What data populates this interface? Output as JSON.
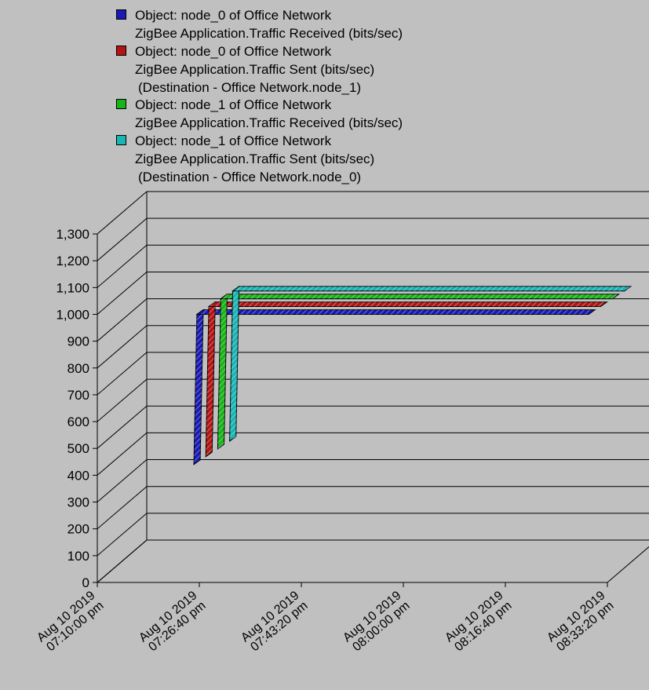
{
  "chart_data": {
    "type": "line",
    "view": "3d-ribbon",
    "ylim": [
      0,
      1300
    ],
    "yticks": [
      "0",
      "100",
      "200",
      "300",
      "400",
      "500",
      "600",
      "700",
      "800",
      "900",
      "1,000",
      "1,100",
      "1,200",
      "1,300"
    ],
    "xticks": [
      {
        "line1": "Aug 10 2019",
        "line2": "07:10:00 pm"
      },
      {
        "line1": "Aug 10 2019",
        "line2": "07:26:40 pm"
      },
      {
        "line1": "Aug 10 2019",
        "line2": "07:43:20 pm"
      },
      {
        "line1": "Aug 10 2019",
        "line2": "08:00:00 pm"
      },
      {
        "line1": "Aug 10 2019",
        "line2": "08:16:40 pm"
      },
      {
        "line1": "Aug 10 2019",
        "line2": "08:33:20 pm"
      }
    ],
    "grid": true,
    "legend_position": "top",
    "series": [
      {
        "name": "Object: node_0 of Office Network",
        "line2": "ZigBee Application.Traffic Received (bits/sec)",
        "line3": "",
        "color": "#1a1ab4",
        "points": [
          {
            "x": "07:25:00 pm",
            "y": 440
          },
          {
            "x": "07:25:30 pm",
            "y": 1000
          },
          {
            "x": "08:29:30 pm",
            "y": 1000
          }
        ]
      },
      {
        "name": "Object: node_0 of Office Network",
        "line2": "ZigBee Application.Traffic Sent (bits/sec)",
        "line3": "(Destination - Office Network.node_1)",
        "color": "#b41414",
        "points": [
          {
            "x": "07:25:00 pm",
            "y": 440
          },
          {
            "x": "07:25:30 pm",
            "y": 1000
          },
          {
            "x": "08:29:30 pm",
            "y": 1000
          }
        ]
      },
      {
        "name": "Object: node_1 of Office Network",
        "line2": "ZigBee Application.Traffic Received (bits/sec)",
        "line3": "",
        "color": "#19b419",
        "points": [
          {
            "x": "07:25:00 pm",
            "y": 440
          },
          {
            "x": "07:25:30 pm",
            "y": 1000
          },
          {
            "x": "08:29:30 pm",
            "y": 1000
          }
        ]
      },
      {
        "name": "Object: node_1 of Office Network",
        "line2": "ZigBee Application.Traffic Sent (bits/sec)",
        "line3": "(Destination - Office Network.node_0)",
        "color": "#19b4b4",
        "points": [
          {
            "x": "07:25:00 pm",
            "y": 440
          },
          {
            "x": "07:25:30 pm",
            "y": 1000
          },
          {
            "x": "08:29:30 pm",
            "y": 1000
          }
        ]
      }
    ]
  }
}
